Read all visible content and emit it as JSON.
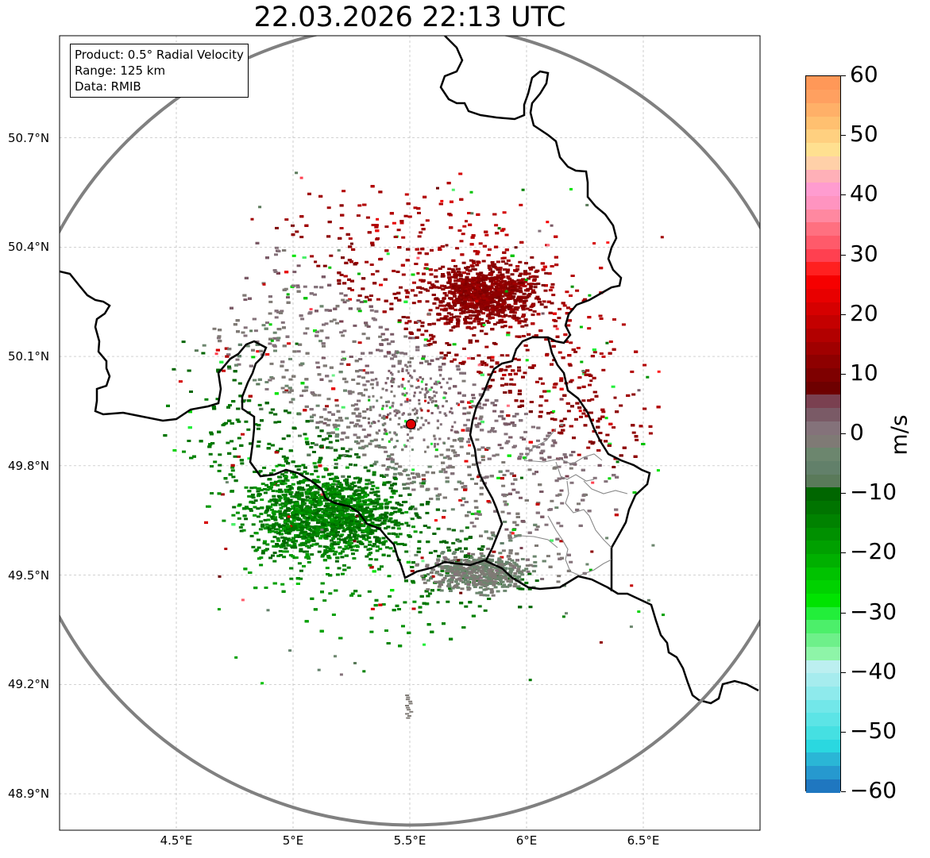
{
  "title": "22.03.2026 22:13 UTC",
  "info": {
    "product": "Product: 0.5° Radial Velocity",
    "range": "Range: 125 km",
    "data": "Data: RMIB"
  },
  "map_data": {
    "extent": {
      "lon_min": 4.0,
      "lon_max": 7.0,
      "lat_min": 48.8,
      "lat_max": 50.98
    },
    "radar_site": {
      "lon": 5.505,
      "lat": 49.914
    },
    "range_km": 125,
    "lat_ticks": [
      {
        "value": 50.7,
        "label": "50.7°N"
      },
      {
        "value": 50.4,
        "label": "50.4°N"
      },
      {
        "value": 50.1,
        "label": "50.1°N"
      },
      {
        "value": 49.8,
        "label": "49.8°N"
      },
      {
        "value": 49.5,
        "label": "49.5°N"
      },
      {
        "value": 49.2,
        "label": "49.2°N"
      },
      {
        "value": 48.9,
        "label": "48.9°N"
      }
    ],
    "lon_ticks": [
      {
        "value": 4.5,
        "label": "4.5°E"
      },
      {
        "value": 5.0,
        "label": "5°E"
      },
      {
        "value": 5.5,
        "label": "5.5°E"
      },
      {
        "value": 6.0,
        "label": "6°E"
      },
      {
        "value": 6.5,
        "label": "6.5°E"
      }
    ],
    "velocity_regions": [
      {
        "name": "receding-max",
        "center": [
          5.72,
          50.29
        ],
        "velocity": 11
      },
      {
        "name": "receding-ne",
        "center": [
          5.85,
          50.05
        ],
        "velocity": 9
      },
      {
        "name": "approaching-sw",
        "center": [
          5.0,
          49.72
        ],
        "velocity": -10
      },
      {
        "name": "near-zero-ring",
        "center": [
          5.5,
          49.92
        ],
        "velocity": 0
      }
    ]
  },
  "colorbar": {
    "label": "m/s",
    "vmin": -60,
    "vmax": 60,
    "ticks": [
      "60",
      "50",
      "40",
      "30",
      "20",
      "10",
      "0",
      "−10",
      "−20",
      "−30",
      "−40",
      "−50",
      "−60"
    ],
    "colors": [
      "#1f77c0",
      "#2699cf",
      "#2ab6d6",
      "#2ad8e0",
      "#45e0e2",
      "#5ce4e6",
      "#72e7e9",
      "#8eeaec",
      "#a6ecee",
      "#bceff0",
      "#8ef5a8",
      "#6ef08a",
      "#4cef6a",
      "#22ee3a",
      "#00e300",
      "#00d200",
      "#00c200",
      "#00b000",
      "#00a000",
      "#009000",
      "#008200",
      "#007400",
      "#006600",
      "#5a7a5a",
      "#62806a",
      "#6c866e",
      "#7f7a75",
      "#84727a",
      "#7a5a66",
      "#7a4050",
      "#6e0000",
      "#7e0000",
      "#8e0000",
      "#a00000",
      "#b20000",
      "#c40000",
      "#d60000",
      "#e80000",
      "#f60000",
      "#ff2020",
      "#ff4050",
      "#ff5a6a",
      "#ff7080",
      "#ff88a0",
      "#ff94c0",
      "#ff9cd0",
      "#ffb0b8",
      "#ffd0a8",
      "#ffe090",
      "#ffd080",
      "#ffc070",
      "#ffb068",
      "#ffa060",
      "#ff9858"
    ]
  }
}
